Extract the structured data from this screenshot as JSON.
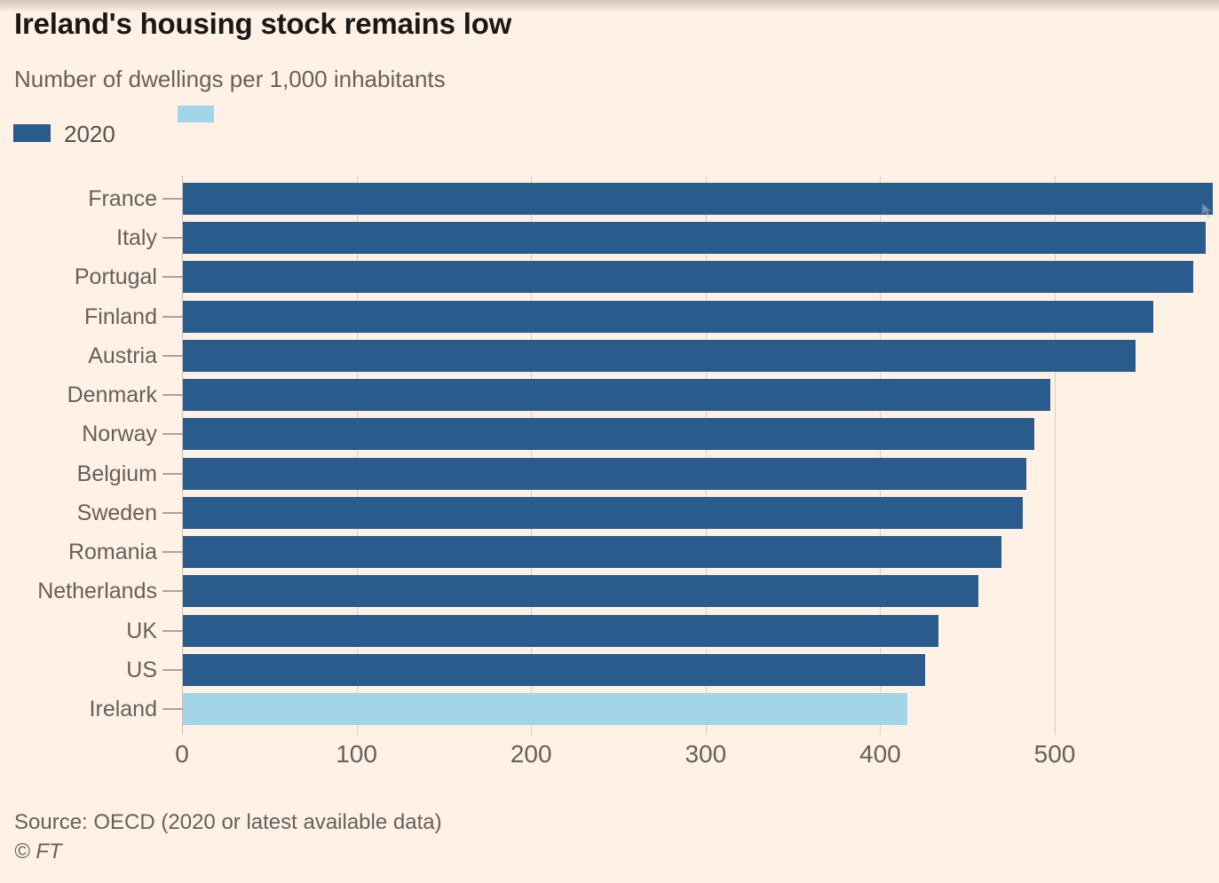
{
  "header": {
    "title": "Ireland's housing stock remains low",
    "subtitle": "Number of dwellings per 1,000 inhabitants",
    "legend": {
      "main": {
        "label": "2020",
        "color": "#295C8C"
      },
      "highlight": {
        "label": "",
        "color": "#A2D5E8"
      }
    }
  },
  "chart_data": {
    "type": "bar",
    "orientation": "horizontal",
    "title": "Ireland's housing stock remains low",
    "subtitle": "Number of dwellings per 1,000 inhabitants",
    "xlabel": "",
    "ylabel": "",
    "categories": [
      "France",
      "Italy",
      "Portugal",
      "Finland",
      "Austria",
      "Denmark",
      "Norway",
      "Belgium",
      "Sweden",
      "Romania",
      "Netherlands",
      "UK",
      "US",
      "Ireland"
    ],
    "values": [
      590,
      586,
      579,
      556,
      546,
      497,
      488,
      483,
      481,
      469,
      456,
      433,
      425,
      415
    ],
    "highlight_category": "Ireland",
    "highlight_color": "#A2D5E8",
    "bar_color": "#295C8C",
    "xticks": [
      0,
      100,
      200,
      300,
      400,
      500
    ],
    "xlim": [
      0,
      590
    ],
    "grid": true,
    "legend_entries": [
      "2020"
    ],
    "legend_position": "top-left"
  },
  "footer": {
    "source": "Source: OECD (2020 or latest available data)",
    "copyright": "© FT"
  },
  "colors": {
    "background": "#FFF1E5",
    "bar": "#295C8C",
    "highlight": "#A2D5E8",
    "title_text": "#1A1817",
    "muted_text": "#66605B",
    "gridline": "#DCCFC2",
    "axis_line": "#C9BDB1"
  }
}
